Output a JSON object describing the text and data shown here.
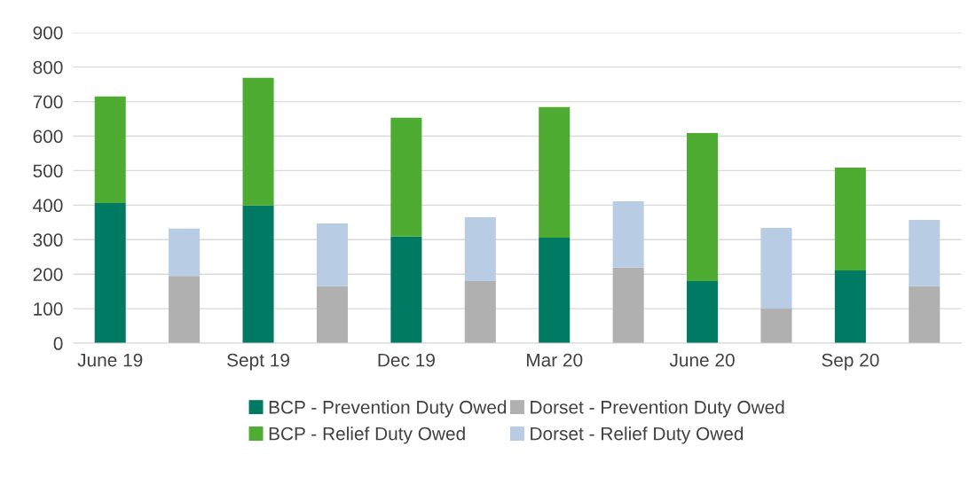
{
  "chart_data": {
    "type": "bar",
    "stacked": true,
    "categories": [
      "June 19",
      null,
      "Sept 19",
      null,
      "Dec 19",
      null,
      "Mar 20",
      null,
      "June 20",
      null,
      "Sep 20",
      null
    ],
    "series": [
      {
        "name": "BCP - Prevention Duty Owed",
        "color": "#007a63",
        "values": [
          406,
          null,
          399,
          null,
          309,
          null,
          306,
          null,
          180,
          null,
          211,
          null
        ]
      },
      {
        "name": "BCP - Relief Duty Owed",
        "color": "#4eac33",
        "values": [
          309,
          null,
          370,
          null,
          344,
          null,
          378,
          null,
          429,
          null,
          298,
          null
        ]
      },
      {
        "name": "Dorset - Prevention Duty Owed",
        "color": "#b0b0b0",
        "values": [
          null,
          195,
          null,
          165,
          null,
          180,
          null,
          219,
          null,
          100,
          null,
          165
        ]
      },
      {
        "name": "Dorset - Relief Duty Owed",
        "color": "#b8cce4",
        "values": [
          null,
          137,
          null,
          182,
          null,
          185,
          null,
          192,
          null,
          234,
          null,
          192
        ]
      }
    ],
    "ylim": [
      0,
      900
    ],
    "yticks": [
      0,
      100,
      200,
      300,
      400,
      500,
      600,
      700,
      800,
      900
    ],
    "grid": "y",
    "legend": "bottom"
  }
}
